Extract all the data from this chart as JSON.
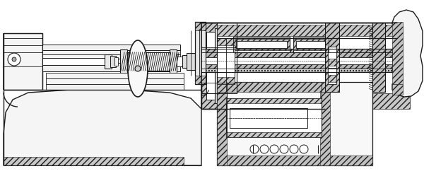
{
  "fig_width": 6.0,
  "fig_height": 2.49,
  "dpi": 100,
  "bg_color": "#ffffff",
  "lc": "#1a1a1a",
  "hatch_fc": "#d0d0d0",
  "white": "#ffffff",
  "light_gray": "#f0f0f0"
}
